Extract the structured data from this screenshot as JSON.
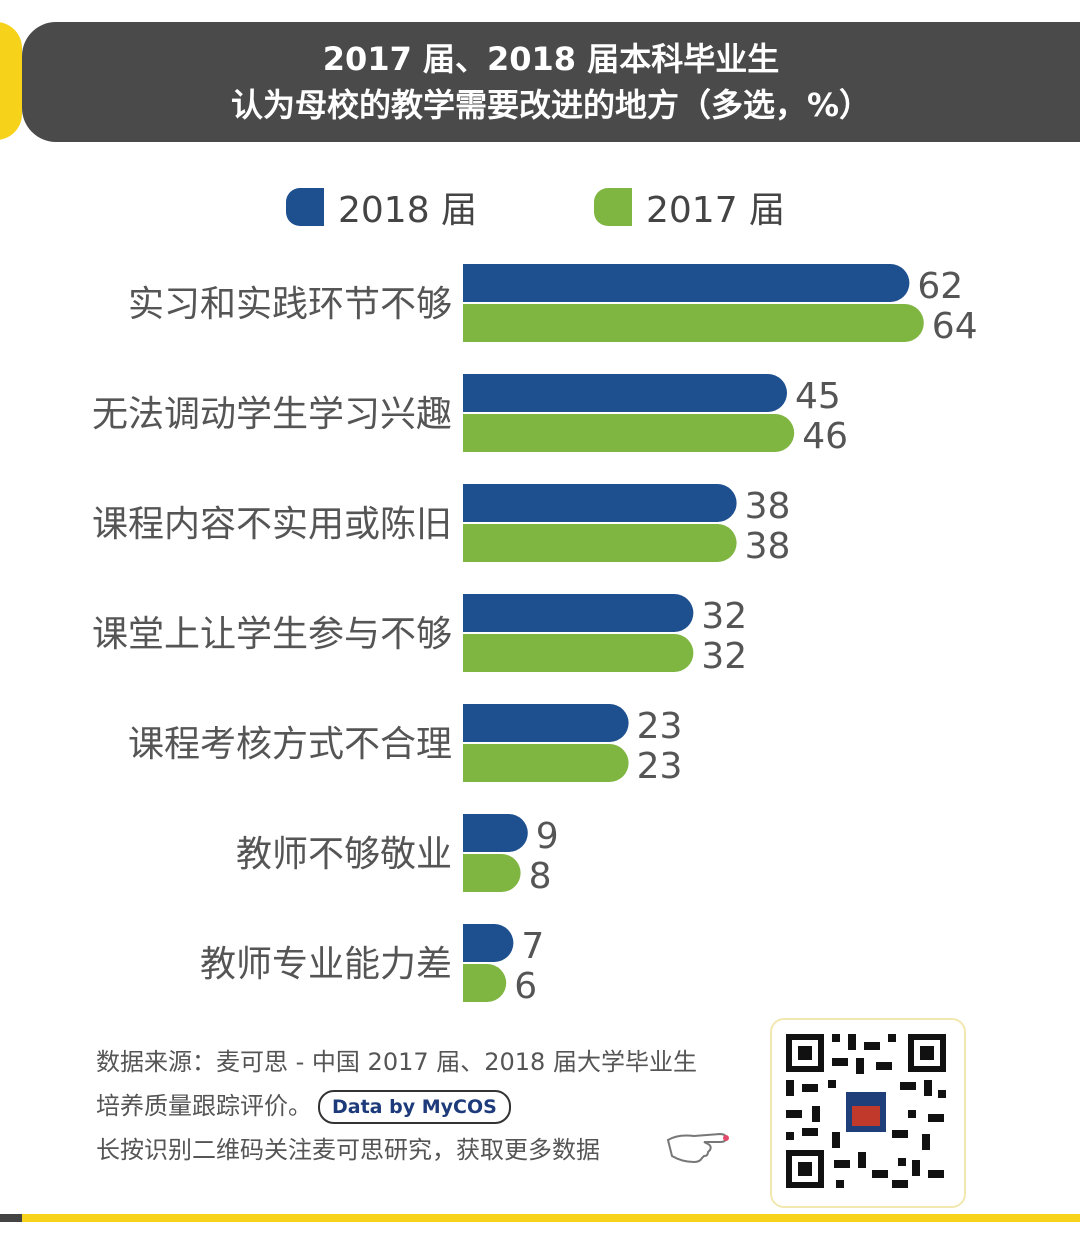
{
  "header": {
    "title_line1": "2017 届、2018 届本科毕业生",
    "title_line2": "认为母校的教学需要改进的地方（多选，%）"
  },
  "colors": {
    "series_2018": "#1e4f8f",
    "series_2017": "#7fb541",
    "accent_yellow": "#f7d21a",
    "banner": "#4a4a4a"
  },
  "chart_data": {
    "type": "bar",
    "orientation": "horizontal",
    "title": "2017 届、2018 届本科毕业生认为母校的教学需要改进的地方（多选，%）",
    "categories": [
      "实习和实践环节不够",
      "无法调动学生学习兴趣",
      "课程内容不实用或陈旧",
      "课堂上让学生参与不够",
      "课程考核方式不合理",
      "教师不够敬业",
      "教师专业能力差"
    ],
    "series": [
      {
        "name": "2018 届",
        "values": [
          62,
          45,
          38,
          32,
          23,
          9,
          7
        ]
      },
      {
        "name": "2017 届",
        "values": [
          64,
          46,
          38,
          32,
          23,
          8,
          6
        ]
      }
    ],
    "legend": "top",
    "grid": false
  },
  "footer": {
    "source_line1": "数据来源：麦可思 - 中国 2017 届、2018 届大学毕业生",
    "source_line2": "培养质量跟踪评价。",
    "badge": "Data by MyCOS",
    "cta": "长按识别二维码关注麦可思研究，获取更多数据"
  },
  "icons": {
    "hand": "pointing-hand-icon",
    "qr": "qr-code-icon"
  }
}
